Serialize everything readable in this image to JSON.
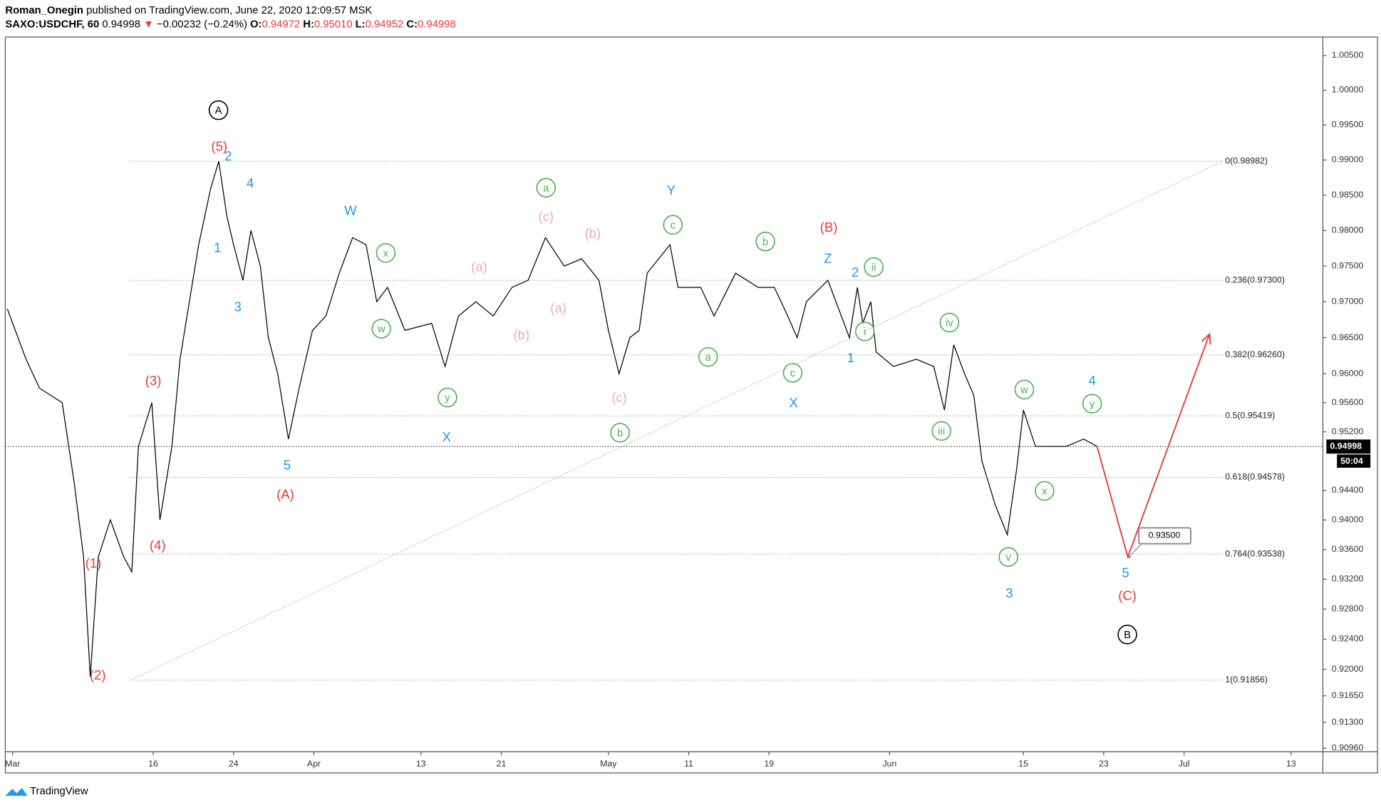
{
  "header": {
    "author": "Roman_Onegin",
    "published": "published on TradingView.com, June 22, 2020 12:09:57 MSK",
    "symbol": "SAXO:USDCHF, 60",
    "last": "0.94998",
    "arrow": "▼",
    "change": "−0.00232 (−0.24%)",
    "ohlc": [
      {
        "label": "O:",
        "value": "0.94972"
      },
      {
        "label": "H:",
        "value": "0.95010"
      },
      {
        "label": "L:",
        "value": "0.94952"
      },
      {
        "label": "C:",
        "value": "0.94998"
      }
    ]
  },
  "footer": {
    "brand": "TradingView"
  },
  "chart_data": {
    "type": "line",
    "log_scale": true,
    "xlim": [
      -1.05,
      97.37
    ],
    "ylim": [
      0.9096,
      1.005
    ],
    "xticks": [
      {
        "value": -0.5,
        "label": "Mar"
      },
      {
        "value": 10,
        "label": "16"
      },
      {
        "value": 16,
        "label": "24"
      },
      {
        "value": 22,
        "label": "Apr"
      },
      {
        "value": 30,
        "label": "13"
      },
      {
        "value": 36,
        "label": "21"
      },
      {
        "value": 44,
        "label": "May"
      },
      {
        "value": 50,
        "label": "11"
      },
      {
        "value": 56,
        "label": "19"
      },
      {
        "value": 65,
        "label": "Jun"
      },
      {
        "value": 75,
        "label": "15"
      },
      {
        "value": 81,
        "label": "23"
      },
      {
        "value": 87,
        "label": "Jul"
      },
      {
        "value": 95,
        "label": "13"
      }
    ],
    "yticks": [
      {
        "value": 1.005,
        "label": "1.00500"
      },
      {
        "value": 1.0,
        "label": "1.00000"
      },
      {
        "value": 0.995,
        "label": "0.99500"
      },
      {
        "value": 0.99,
        "label": "0.99000"
      },
      {
        "value": 0.985,
        "label": "0.98500"
      },
      {
        "value": 0.98,
        "label": "0.98000"
      },
      {
        "value": 0.975,
        "label": "0.97500"
      },
      {
        "value": 0.97,
        "label": "0.97000"
      },
      {
        "value": 0.965,
        "label": "0.96500"
      },
      {
        "value": 0.96,
        "label": "0.96000"
      },
      {
        "value": 0.956,
        "label": "0.95600"
      },
      {
        "value": 0.952,
        "label": "0.95200"
      },
      {
        "value": 0.944,
        "label": "0.94400"
      },
      {
        "value": 0.94,
        "label": "0.94000"
      },
      {
        "value": 0.936,
        "label": "0.93600"
      },
      {
        "value": 0.932,
        "label": "0.93200"
      },
      {
        "value": 0.928,
        "label": "0.92800"
      },
      {
        "value": 0.924,
        "label": "0.92400"
      },
      {
        "value": 0.92,
        "label": "0.92000"
      },
      {
        "value": 0.9165,
        "label": "0.91650"
      },
      {
        "value": 0.913,
        "label": "0.91300"
      },
      {
        "value": 0.9096,
        "label": "0.90960"
      }
    ],
    "series": [
      {
        "name": "USDCHF",
        "color": "#000000",
        "x": [
          -0.9,
          0.5,
          1.5,
          3.2,
          4.1,
          4.8,
          5.3,
          5.9,
          6.8,
          7.8,
          8.4,
          8.9,
          9.9,
          10.5,
          11.4,
          12.0,
          12.7,
          13.4,
          14.3,
          14.9,
          15.5,
          16.0,
          16.7,
          17.3,
          18.0,
          18.6,
          19.3,
          20.1,
          20.9,
          21.9,
          22.9,
          23.9,
          24.9,
          25.9,
          26.7,
          27.5,
          28.8,
          30.8,
          31.8,
          32.8,
          34.1,
          35.4,
          36.8,
          38.0,
          39.3,
          40.7,
          42.0,
          43.3,
          44.0,
          44.8,
          45.6,
          46.3,
          46.9,
          48.6,
          49.2,
          50.9,
          51.9,
          53.5,
          55.2,
          56.4,
          57.4,
          58.1,
          58.8,
          60.4,
          61.4,
          62.0,
          62.6,
          63.0,
          63.6,
          64.0,
          65.3,
          67.0,
          68.3,
          69.1,
          69.8,
          70.6,
          71.3,
          71.9,
          72.9,
          73.8,
          74.5,
          75.0,
          75.9,
          76.9,
          78.2,
          79.5,
          80.5
        ],
        "values": [
          0.969,
          0.962,
          0.958,
          0.956,
          0.945,
          0.935,
          0.919,
          0.935,
          0.94,
          0.935,
          0.933,
          0.95,
          0.956,
          0.94,
          0.95,
          0.962,
          0.97,
          0.978,
          0.986,
          0.9898,
          0.982,
          0.978,
          0.973,
          0.98,
          0.975,
          0.965,
          0.96,
          0.951,
          0.958,
          0.966,
          0.968,
          0.974,
          0.979,
          0.978,
          0.97,
          0.972,
          0.966,
          0.967,
          0.961,
          0.968,
          0.97,
          0.968,
          0.972,
          0.973,
          0.979,
          0.975,
          0.976,
          0.973,
          0.966,
          0.96,
          0.965,
          0.966,
          0.974,
          0.978,
          0.972,
          0.972,
          0.968,
          0.974,
          0.972,
          0.972,
          0.968,
          0.965,
          0.97,
          0.973,
          0.968,
          0.965,
          0.972,
          0.967,
          0.97,
          0.963,
          0.961,
          0.962,
          0.961,
          0.955,
          0.964,
          0.96,
          0.957,
          0.948,
          0.942,
          0.938,
          0.947,
          0.955,
          0.95,
          0.95,
          0.95,
          0.951,
          0.95
        ]
      }
    ],
    "projection": {
      "color": "#e53935",
      "x": [
        80.5,
        82.8,
        88.9
      ],
      "values": [
        0.95,
        0.935,
        0.9655
      ]
    },
    "target": {
      "value": 0.935,
      "label": "0.93500"
    },
    "last_price": {
      "value": 0.94998,
      "label": "0.94998",
      "countdown": "50:04"
    },
    "fib_levels": [
      {
        "value": 0.98982,
        "label": "0(0.98982)"
      },
      {
        "value": 0.973,
        "label": "0.236(0.97300)"
      },
      {
        "value": 0.9626,
        "label": "0.382(0.96260)"
      },
      {
        "value": 0.95419,
        "label": "0.5(0.95419)"
      },
      {
        "value": 0.94578,
        "label": "0.618(0.94578)"
      },
      {
        "value": 0.93538,
        "label": "0.764(0.93538)"
      },
      {
        "value": 0.91856,
        "label": "1(0.91856)"
      }
    ],
    "wave_labels": [
      {
        "color": "#000000",
        "circled": true,
        "labels": [
          "A",
          "B"
        ]
      },
      {
        "color": "#e53935",
        "circled": false,
        "labels": [
          "(5)",
          "(3)",
          "(4)",
          "(1)",
          "(2)",
          "(A)",
          "(B)",
          "(C)"
        ]
      },
      {
        "color": "#2196f3",
        "circled": false,
        "labels": [
          "2",
          "4",
          "1",
          "3",
          "5",
          "W",
          "X",
          "Y",
          "Z",
          "X",
          "2",
          "1",
          "3",
          "4",
          "5"
        ]
      },
      {
        "color": "#4caf50",
        "circled": true,
        "labels": [
          "x",
          "w",
          "y",
          "a",
          "c",
          "a",
          "b",
          "b",
          "c",
          "ii",
          "i",
          "iv",
          "iii",
          "w",
          "y",
          "x",
          "v"
        ]
      },
      {
        "color": "#f4a6c0",
        "circled": false,
        "labels": [
          "(c)",
          "(b)",
          "(a)",
          "(a)",
          "(b)",
          "(c)"
        ]
      }
    ]
  }
}
